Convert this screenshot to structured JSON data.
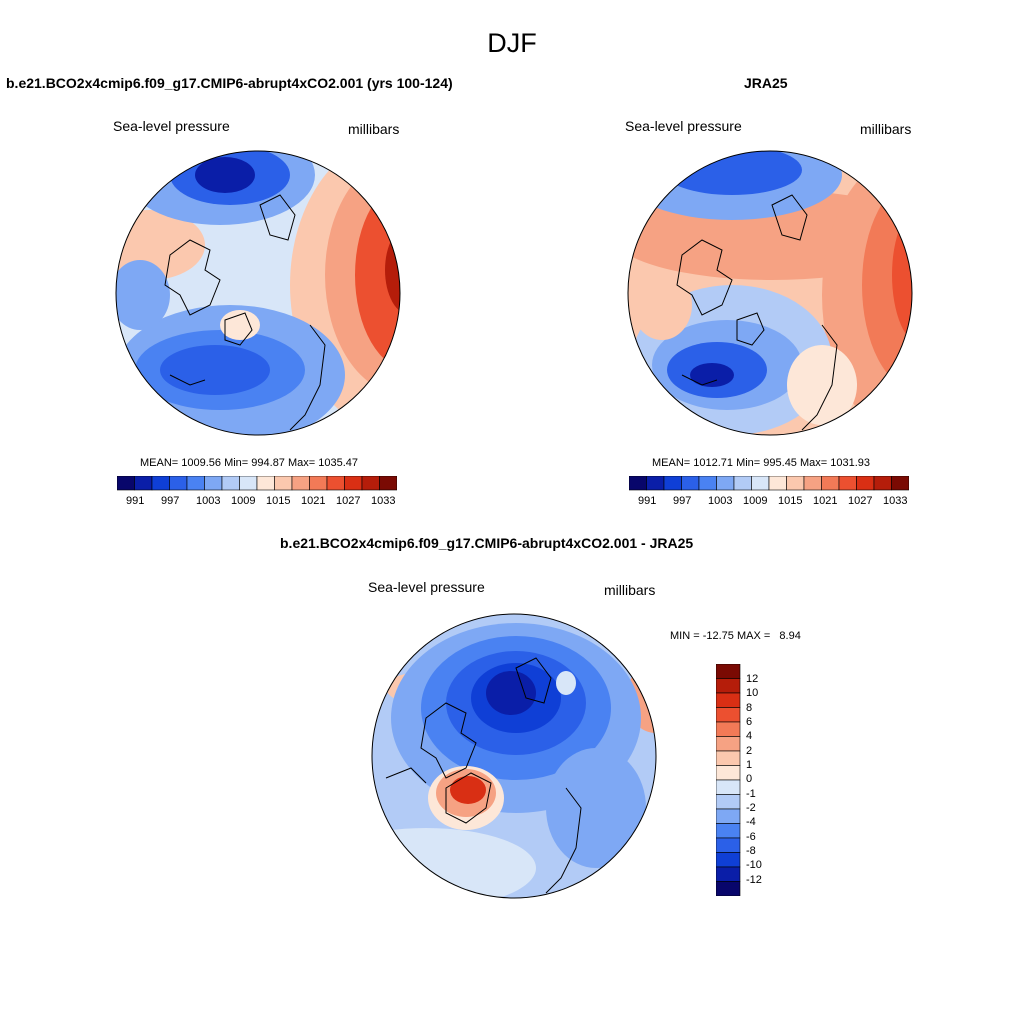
{
  "figure": {
    "title": "DJF",
    "colors": {
      "blues": [
        "#08066b",
        "#0a1ea8",
        "#0f3fd6",
        "#2b60e8",
        "#4a82f2",
        "#7ea8f4",
        "#b2cbf6",
        "#d8e6f8"
      ],
      "reds": [
        "#fde7d8",
        "#fbc8ae",
        "#f6a283",
        "#f27a57",
        "#ec5030",
        "#d92f14",
        "#b51d0a",
        "#7a0a03"
      ]
    }
  },
  "panels": [
    {
      "id": "model",
      "title": "b.e21.BCO2x4cmip6.f09_g17.CMIP6-abrupt4xCO2.001 (yrs 100-124)",
      "variable": "Sea-level pressure",
      "units": "millibars",
      "stats": "MEAN= 1009.56  Min= 994.87  Max= 1035.47"
    },
    {
      "id": "obs",
      "title": "JRA25",
      "variable": "Sea-level pressure",
      "units": "millibars",
      "stats": "MEAN= 1012.71  Min= 995.45  Max= 1031.93"
    },
    {
      "id": "diff",
      "title": "b.e21.BCO2x4cmip6.f09_g17.CMIP6-abrupt4xCO2.001 - JRA25",
      "variable": "Sea-level pressure",
      "units": "millibars",
      "stats": "MIN = -12.75 MAX =   8.94"
    }
  ],
  "chart_data": [
    {
      "type": "heatmap",
      "projection": "north-polar-stereographic",
      "title": "b.e21.BCO2x4cmip6.f09_g17.CMIP6-abrupt4xCO2.001 (yrs 100-124)",
      "variable": "Sea-level pressure",
      "units": "millibars",
      "mean": 1009.56,
      "min": 994.87,
      "max": 1035.47,
      "colorbar_levels": [
        988,
        991,
        994,
        997,
        1000,
        1003,
        1006,
        1009,
        1012,
        1015,
        1018,
        1021,
        1024,
        1027,
        1030,
        1033,
        1036
      ],
      "colorbar_tick_labels": [
        "991",
        "997",
        "1003",
        "1009",
        "1015",
        "1021",
        "1027",
        "1033"
      ]
    },
    {
      "type": "heatmap",
      "projection": "north-polar-stereographic",
      "title": "JRA25",
      "variable": "Sea-level pressure",
      "units": "millibars",
      "mean": 1012.71,
      "min": 995.45,
      "max": 1031.93,
      "colorbar_levels": [
        988,
        991,
        994,
        997,
        1000,
        1003,
        1006,
        1009,
        1012,
        1015,
        1018,
        1021,
        1024,
        1027,
        1030,
        1033,
        1036
      ],
      "colorbar_tick_labels": [
        "991",
        "997",
        "1003",
        "1009",
        "1015",
        "1021",
        "1027",
        "1033"
      ]
    },
    {
      "type": "heatmap",
      "projection": "north-polar-stereographic",
      "title": "b.e21.BCO2x4cmip6.f09_g17.CMIP6-abrupt4xCO2.001 - JRA25",
      "variable": "Sea-level pressure",
      "units": "millibars",
      "min": -12.75,
      "max": 8.94,
      "colorbar_levels": [
        -14,
        -12,
        -10,
        -8,
        -6,
        -4,
        -2,
        -1,
        0,
        1,
        2,
        4,
        6,
        8,
        10,
        12,
        14
      ],
      "colorbar_tick_labels": [
        "12",
        "10",
        "8",
        "6",
        "4",
        "2",
        "1",
        "0",
        "-1",
        "-2",
        "-4",
        "-6",
        "-8",
        "-10",
        "-12"
      ]
    }
  ]
}
